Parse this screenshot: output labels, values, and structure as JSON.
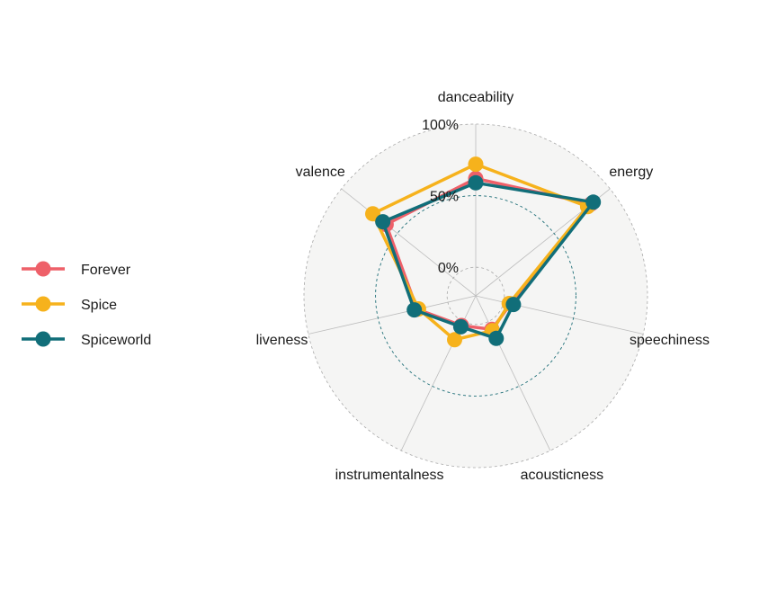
{
  "chart_data": {
    "type": "radar",
    "axes": [
      "danceability",
      "energy",
      "speechiness",
      "acousticness",
      "instrumentalness",
      "liveness",
      "valence"
    ],
    "rlim": [
      -0.2,
      1.0
    ],
    "ticks": [
      {
        "value": 0.0,
        "label": "0%"
      },
      {
        "value": 0.5,
        "label": "50%"
      },
      {
        "value": 1.0,
        "label": "100%"
      }
    ],
    "legend_position": "left",
    "series": [
      {
        "name": "Forever",
        "color": "#EE6069",
        "values": [
          0.62,
          0.83,
          0.05,
          0.06,
          0.03,
          0.22,
          0.6
        ]
      },
      {
        "name": "Spice",
        "color": "#F6B21C",
        "values": [
          0.72,
          0.8,
          0.04,
          0.07,
          0.14,
          0.21,
          0.72
        ]
      },
      {
        "name": "Spiceworld",
        "color": "#116E79",
        "values": [
          0.59,
          0.85,
          0.07,
          0.13,
          0.04,
          0.24,
          0.63
        ]
      }
    ],
    "background_color": "#F5F5F4",
    "grid_color": "#BDBDBD",
    "mid_grid_color": "#1F6F78"
  }
}
